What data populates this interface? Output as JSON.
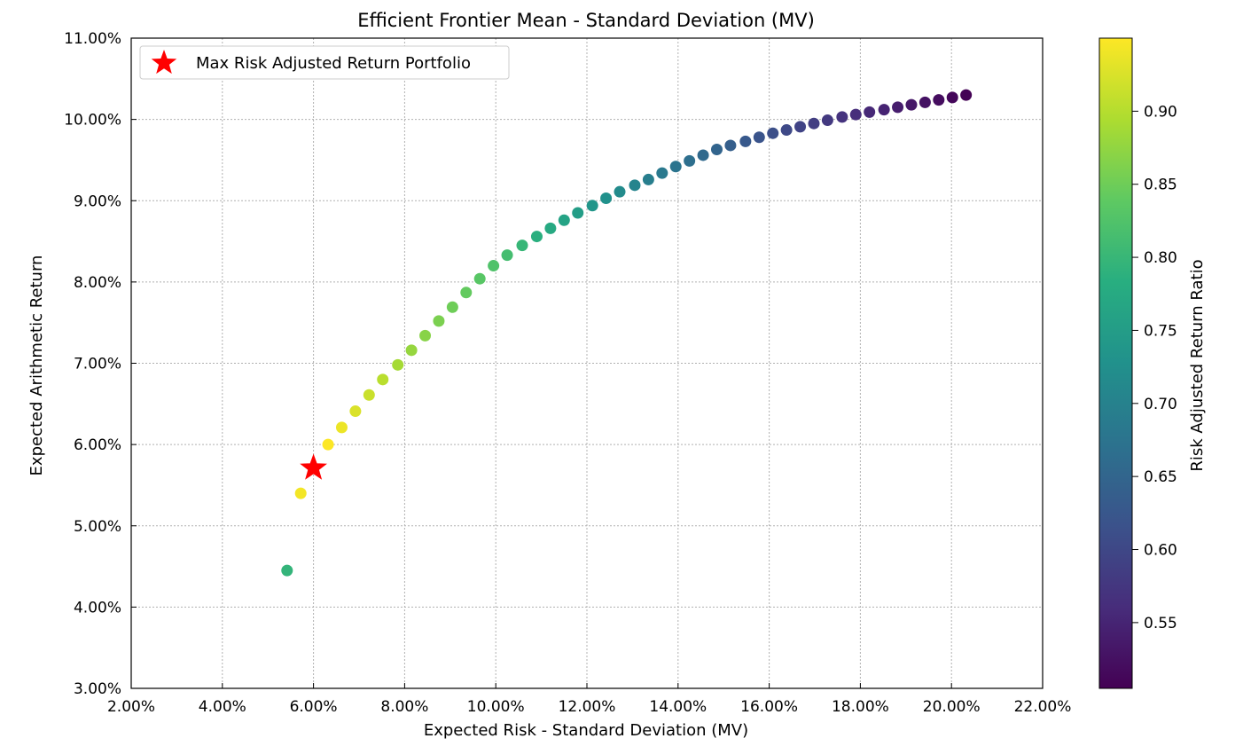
{
  "chart_data": {
    "type": "scatter",
    "title": "Efficient Frontier Mean - Standard Deviation (MV)",
    "xlabel": "Expected Risk - Standard Deviation (MV)",
    "ylabel": "Expected Arithmetic Return",
    "xlim": [
      0.02,
      0.22
    ],
    "ylim": [
      0.03,
      0.11
    ],
    "x_ticks": [
      "2.00%",
      "4.00%",
      "6.00%",
      "8.00%",
      "10.00%",
      "12.00%",
      "14.00%",
      "16.00%",
      "18.00%",
      "20.00%",
      "22.00%"
    ],
    "y_ticks": [
      "3.00%",
      "4.00%",
      "5.00%",
      "6.00%",
      "7.00%",
      "8.00%",
      "9.00%",
      "10.00%",
      "11.00%"
    ],
    "grid": true,
    "legend": {
      "position": "top-left",
      "entries": [
        "Max Risk Adjusted Return Portfolio"
      ]
    },
    "colorbar": {
      "label": "Risk Adjusted Return Ratio",
      "colormap": "viridis",
      "range": [
        0.505,
        0.95
      ],
      "ticks": [
        "0.55",
        "0.60",
        "0.65",
        "0.70",
        "0.75",
        "0.80",
        "0.85",
        "0.90"
      ]
    },
    "max_point": {
      "x": 0.06,
      "y": 0.0571,
      "color": "#ff0000",
      "marker": "star"
    },
    "points": [
      [
        0.0542,
        0.0445,
        0.795
      ],
      [
        0.0572,
        0.054,
        0.943
      ],
      [
        0.0632,
        0.06,
        0.949
      ],
      [
        0.0662,
        0.0621,
        0.938
      ],
      [
        0.0692,
        0.0641,
        0.926
      ],
      [
        0.0722,
        0.0661,
        0.914
      ],
      [
        0.0752,
        0.068,
        0.903
      ],
      [
        0.0785,
        0.0698,
        0.889
      ],
      [
        0.0815,
        0.0716,
        0.878
      ],
      [
        0.0845,
        0.0734,
        0.868
      ],
      [
        0.0875,
        0.0752,
        0.859
      ],
      [
        0.0905,
        0.0769,
        0.85
      ],
      [
        0.0935,
        0.0787,
        0.842
      ],
      [
        0.0965,
        0.0804,
        0.833
      ],
      [
        0.0995,
        0.082,
        0.824
      ],
      [
        0.1025,
        0.0833,
        0.813
      ],
      [
        0.1058,
        0.0845,
        0.799
      ],
      [
        0.109,
        0.0856,
        0.785
      ],
      [
        0.112,
        0.0866,
        0.773
      ],
      [
        0.115,
        0.0876,
        0.762
      ],
      [
        0.118,
        0.0885,
        0.75
      ],
      [
        0.1212,
        0.0894,
        0.738
      ],
      [
        0.1242,
        0.0903,
        0.727
      ],
      [
        0.1272,
        0.0911,
        0.716
      ],
      [
        0.1305,
        0.0919,
        0.704
      ],
      [
        0.1335,
        0.0926,
        0.694
      ],
      [
        0.1365,
        0.0934,
        0.684
      ],
      [
        0.1395,
        0.0942,
        0.675
      ],
      [
        0.1425,
        0.0949,
        0.666
      ],
      [
        0.1455,
        0.0956,
        0.657
      ],
      [
        0.1485,
        0.0963,
        0.648
      ],
      [
        0.1515,
        0.0968,
        0.639
      ],
      [
        0.1548,
        0.0973,
        0.629
      ],
      [
        0.1578,
        0.0978,
        0.62
      ],
      [
        0.1608,
        0.0983,
        0.611
      ],
      [
        0.1638,
        0.0987,
        0.603
      ],
      [
        0.1668,
        0.0991,
        0.594
      ],
      [
        0.1698,
        0.0995,
        0.586
      ],
      [
        0.1728,
        0.0999,
        0.578
      ],
      [
        0.176,
        0.1003,
        0.57
      ],
      [
        0.179,
        0.1006,
        0.562
      ],
      [
        0.182,
        0.1009,
        0.555
      ],
      [
        0.1852,
        0.1012,
        0.548
      ],
      [
        0.1882,
        0.1015,
        0.541
      ],
      [
        0.1912,
        0.1018,
        0.534
      ],
      [
        0.1942,
        0.1021,
        0.527
      ],
      [
        0.1972,
        0.1024,
        0.52
      ],
      [
        0.2002,
        0.1027,
        0.513
      ],
      [
        0.2032,
        0.103,
        0.506
      ]
    ]
  }
}
